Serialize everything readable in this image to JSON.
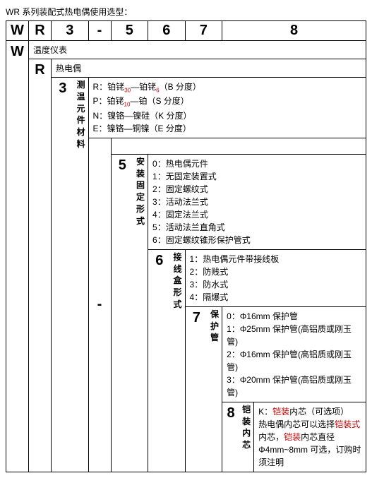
{
  "title": "WR 系列装配式热电偶使用选型：",
  "header": [
    "W",
    "R",
    "3",
    "-",
    "5",
    "6",
    "7",
    "8"
  ],
  "row_W": {
    "big": "W",
    "label": "温度仪表"
  },
  "row_R": {
    "big": "R",
    "label": "热电偶"
  },
  "col3": {
    "big": "3",
    "v": "测温元件材料",
    "r": {
      "pre": "R：铂铑",
      "sub": "30",
      "mid": "—铂铑",
      "sub2": "6",
      "post": "（B 分度）"
    },
    "p": {
      "pre": "P：铂铑",
      "sub": "10",
      "post": "—铂（S 分度）"
    },
    "n": "N：镍铬—镍硅（K 分度）",
    "e": "E：镍铬—铜镍（E 分度）"
  },
  "dash": "-",
  "col5": {
    "big": "5",
    "v": "安装固定形式",
    "items": [
      "0：热电偶元件",
      "1：无固定装置式",
      "2：固定螺纹式",
      "3：活动法兰式",
      "4：固定法兰式",
      "5：活动法兰直角式",
      "6：固定螺纹锥形保护管式"
    ]
  },
  "col6": {
    "big": "6",
    "v": "接线盒形式",
    "items": [
      "1：热电偶元件带接线板",
      "2：防贱式",
      "3：防水式",
      "4：隔爆式"
    ]
  },
  "col7": {
    "big": "7",
    "v": "保护管",
    "items": [
      "0：Φ16mm 保护管",
      "1：Φ25mm 保护管(高铝质或刚玉管)",
      "2：Φ16mm 保护管(高铝质或刚玉管)",
      "3：Φ20mm 保护管(高铝质或刚玉管)"
    ]
  },
  "col8": {
    "big": "8",
    "v": "铠装内芯",
    "k_pre": "K：",
    "k_red": "铠装",
    "k_post": "内芯（可选项）",
    "body_pre": "热电偶内芯可以选择",
    "body_red1": "铠装式",
    "body_mid": "内芯，",
    "body_red2": "铠装",
    "body_post": "内芯直径Φ4mm~8mm 可选，订购时须注明"
  }
}
